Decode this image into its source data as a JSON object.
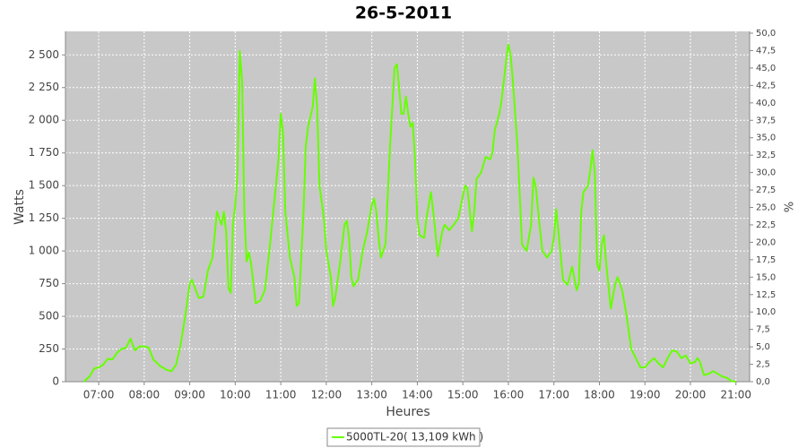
{
  "chart_data": {
    "type": "line",
    "title": "26-5-2011",
    "x_label": "Heures",
    "y_label": "Watts",
    "y2_label": "%",
    "x": [
      6.67,
      6.8,
      6.9,
      7.0,
      7.1,
      7.2,
      7.3,
      7.4,
      7.5,
      7.6,
      7.7,
      7.75,
      7.8,
      7.9,
      8.0,
      8.1,
      8.2,
      8.35,
      8.5,
      8.6,
      8.7,
      8.8,
      8.9,
      9.0,
      9.05,
      9.1,
      9.2,
      9.3,
      9.4,
      9.5,
      9.6,
      9.7,
      9.75,
      9.8,
      9.85,
      9.9,
      9.95,
      10.0,
      10.05,
      10.1,
      10.15,
      10.2,
      10.25,
      10.3,
      10.35,
      10.45,
      10.55,
      10.65,
      10.75,
      10.85,
      10.95,
      11.0,
      11.05,
      11.1,
      11.2,
      11.3,
      11.35,
      11.4,
      11.5,
      11.55,
      11.6,
      11.7,
      11.75,
      11.8,
      11.85,
      11.95,
      12.0,
      12.1,
      12.15,
      12.2,
      12.3,
      12.4,
      12.45,
      12.5,
      12.55,
      12.6,
      12.7,
      12.8,
      12.9,
      13.0,
      13.05,
      13.1,
      13.15,
      13.2,
      13.3,
      13.4,
      13.5,
      13.55,
      13.6,
      13.65,
      13.7,
      13.75,
      13.8,
      13.85,
      13.9,
      13.95,
      14.0,
      14.05,
      14.15,
      14.2,
      14.3,
      14.35,
      14.45,
      14.55,
      14.6,
      14.7,
      14.8,
      14.9,
      15.0,
      15.05,
      15.1,
      15.2,
      15.25,
      15.3,
      15.4,
      15.5,
      15.6,
      15.65,
      15.7,
      15.8,
      15.85,
      15.9,
      15.95,
      16.0,
      16.05,
      16.1,
      16.2,
      16.3,
      16.4,
      16.5,
      16.55,
      16.6,
      16.7,
      16.75,
      16.85,
      16.95,
      17.0,
      17.05,
      17.1,
      17.2,
      17.3,
      17.4,
      17.5,
      17.55,
      17.6,
      17.65,
      17.75,
      17.8,
      17.85,
      17.9,
      17.95,
      18.0,
      18.05,
      18.1,
      18.15,
      18.25,
      18.35,
      18.4,
      18.5,
      18.6,
      18.7,
      18.8,
      18.9,
      19.0,
      19.1,
      19.2,
      19.3,
      19.4,
      19.5,
      19.6,
      19.7,
      19.8,
      19.9,
      20.0,
      20.1,
      20.15,
      20.2,
      20.3,
      20.4,
      20.5,
      20.6,
      20.7,
      20.8,
      20.9,
      21.0
    ],
    "series": [
      {
        "name": "5000TL-20( 13,109 kWh )",
        "color": "#66ff00",
        "values": [
          0,
          40,
          100,
          110,
          130,
          175,
          170,
          220,
          250,
          260,
          330,
          280,
          240,
          270,
          270,
          260,
          170,
          120,
          90,
          80,
          130,
          280,
          500,
          750,
          780,
          730,
          640,
          650,
          850,
          950,
          1300,
          1200,
          1300,
          1150,
          720,
          680,
          1200,
          1350,
          1600,
          2530,
          2300,
          1300,
          920,
          990,
          900,
          600,
          620,
          700,
          1000,
          1350,
          1700,
          2050,
          1900,
          1300,
          950,
          800,
          580,
          600,
          1300,
          1800,
          1950,
          2100,
          2320,
          2100,
          1500,
          1250,
          1000,
          800,
          580,
          650,
          900,
          1200,
          1230,
          1100,
          800,
          730,
          780,
          1000,
          1150,
          1350,
          1400,
          1300,
          1100,
          950,
          1050,
          1800,
          2400,
          2430,
          2250,
          2050,
          2050,
          2180,
          2050,
          1950,
          1980,
          1700,
          1250,
          1120,
          1100,
          1250,
          1450,
          1300,
          960,
          1150,
          1200,
          1160,
          1200,
          1250,
          1420,
          1500,
          1480,
          1150,
          1300,
          1550,
          1600,
          1720,
          1700,
          1750,
          1920,
          2050,
          2150,
          2300,
          2450,
          2580,
          2500,
          2300,
          1800,
          1050,
          1000,
          1200,
          1560,
          1500,
          1150,
          1000,
          950,
          1000,
          1100,
          1320,
          1150,
          780,
          740,
          880,
          700,
          750,
          1300,
          1450,
          1500,
          1620,
          1770,
          1600,
          900,
          850,
          1050,
          1120,
          900,
          560,
          750,
          800,
          700,
          500,
          250,
          180,
          110,
          110,
          150,
          180,
          140,
          110,
          180,
          240,
          230,
          180,
          200,
          140,
          150,
          180,
          160,
          50,
          60,
          80,
          60,
          40,
          30,
          5,
          0
        ]
      }
    ],
    "xlim": [
      6.27,
      21.3
    ],
    "xticks": [
      {
        "value": 7,
        "label": "07:00"
      },
      {
        "value": 8,
        "label": "08:00"
      },
      {
        "value": 9,
        "label": "09:00"
      },
      {
        "value": 10,
        "label": "10:00"
      },
      {
        "value": 11,
        "label": "11:00"
      },
      {
        "value": 12,
        "label": "12:00"
      },
      {
        "value": 13,
        "label": "13:00"
      },
      {
        "value": 14,
        "label": "14:00"
      },
      {
        "value": 15,
        "label": "15:00"
      },
      {
        "value": 16,
        "label": "16:00"
      },
      {
        "value": 17,
        "label": "17:00"
      },
      {
        "value": 18,
        "label": "18:00"
      },
      {
        "value": 19,
        "label": "19:00"
      },
      {
        "value": 20,
        "label": "20:00"
      },
      {
        "value": 21,
        "label": "21:00"
      }
    ],
    "ylim": [
      0,
      2680
    ],
    "yticks": [
      0,
      250,
      500,
      750,
      {
        "value": 1000,
        "label": "1 000"
      },
      {
        "value": 1250,
        "label": "1 250"
      },
      {
        "value": 1500,
        "label": "1 500"
      },
      {
        "value": 1750,
        "label": "1 750"
      },
      {
        "value": 2000,
        "label": "2 000"
      },
      {
        "value": 2250,
        "label": "2 250"
      },
      {
        "value": 2500,
        "label": "2 500"
      }
    ],
    "y2lim": [
      0,
      50.26
    ],
    "y2ticks": [
      {
        "value": 0,
        "label": "0,0"
      },
      {
        "value": 2.5,
        "label": "2,5"
      },
      {
        "value": 5,
        "label": "5,0"
      },
      {
        "value": 7.5,
        "label": "7,5"
      },
      {
        "value": 10,
        "label": "10,0"
      },
      {
        "value": 12.5,
        "label": "12,5"
      },
      {
        "value": 15,
        "label": "15,0"
      },
      {
        "value": 17.5,
        "label": "17,5"
      },
      {
        "value": 20,
        "label": "20,0"
      },
      {
        "value": 22.5,
        "label": "22,5"
      },
      {
        "value": 25,
        "label": "25,0"
      },
      {
        "value": 27.5,
        "label": "27,5"
      },
      {
        "value": 30,
        "label": "30,0"
      },
      {
        "value": 32.5,
        "label": "32,5"
      },
      {
        "value": 35,
        "label": "35,0"
      },
      {
        "value": 37.5,
        "label": "37,5"
      },
      {
        "value": 40,
        "label": "40,0"
      },
      {
        "value": 42.5,
        "label": "42,5"
      },
      {
        "value": 45,
        "label": "45,0"
      },
      {
        "value": 47.5,
        "label": "47,5"
      },
      {
        "value": 50,
        "label": "50,0"
      }
    ],
    "grid": true
  }
}
